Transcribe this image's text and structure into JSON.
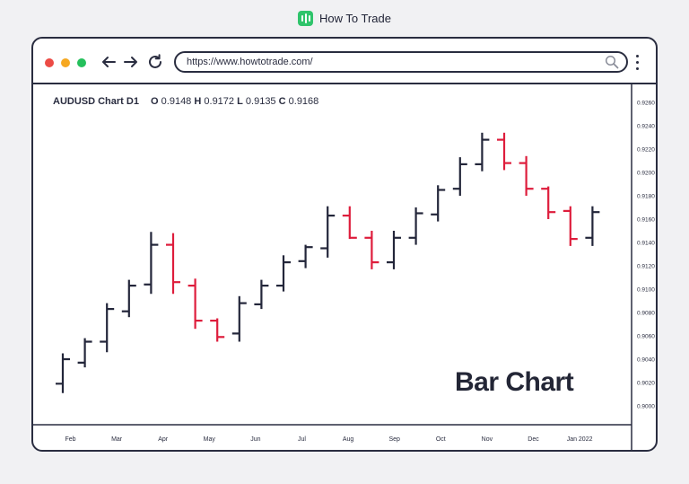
{
  "brand": {
    "name": "How To Trade",
    "logo_icon": "bar-chart-logo-icon",
    "color": "#2fc46b"
  },
  "browser": {
    "url": "https://www.howtotrade.com/",
    "traffic_lights": [
      "#ec4b45",
      "#f6a821",
      "#25c05c"
    ],
    "icons": [
      "back-arrow-icon",
      "forward-arrow-icon",
      "reload-icon",
      "search-icon",
      "kebab-menu-icon"
    ]
  },
  "chart_header": {
    "symbol": "AUDUSD Chart D1",
    "o_label": "O",
    "o_value": "0.9148",
    "h_label": "H",
    "h_value": "0.9172",
    "l_label": "L",
    "l_value": "0.9135",
    "c_label": "C",
    "c_value": "0.9168"
  },
  "watermark": "Bar Chart",
  "chart_data": {
    "type": "ohlc",
    "title": "AUDUSD Chart D1",
    "up_color": "#23263a",
    "down_color": "#de1d3c",
    "y_ticks": [
      "0.9000",
      "0.9020",
      "0.9040",
      "0.9060",
      "0.9080",
      "0.9100",
      "0.9120",
      "0.9140",
      "0.9160",
      "0.9180",
      "0.9200",
      "0.9220",
      "0.9240",
      "0.9260"
    ],
    "x_ticks": [
      "Feb",
      "Mar",
      "Apr",
      "May",
      "Jun",
      "Jul",
      "Aug",
      "Sep",
      "Oct",
      "Nov",
      "Dec",
      "Jan 2022"
    ],
    "ylim": [
      0.9,
      0.926
    ],
    "bars": [
      {
        "o": 0.9019,
        "h": 0.9045,
        "l": 0.9011,
        "c": 0.904
      },
      {
        "o": 0.9037,
        "h": 0.9058,
        "l": 0.9033,
        "c": 0.9055
      },
      {
        "o": 0.9055,
        "h": 0.9088,
        "l": 0.9046,
        "c": 0.9083
      },
      {
        "o": 0.9081,
        "h": 0.9108,
        "l": 0.9076,
        "c": 0.9103
      },
      {
        "o": 0.9104,
        "h": 0.9149,
        "l": 0.9096,
        "c": 0.9138
      },
      {
        "o": 0.9138,
        "h": 0.9148,
        "l": 0.9096,
        "c": 0.9106
      },
      {
        "o": 0.9103,
        "h": 0.9109,
        "l": 0.9066,
        "c": 0.9073
      },
      {
        "o": 0.9073,
        "h": 0.9075,
        "l": 0.9055,
        "c": 0.9059
      },
      {
        "o": 0.9062,
        "h": 0.9094,
        "l": 0.9055,
        "c": 0.9088
      },
      {
        "o": 0.9087,
        "h": 0.9108,
        "l": 0.9083,
        "c": 0.9103
      },
      {
        "o": 0.9103,
        "h": 0.9129,
        "l": 0.9098,
        "c": 0.9123
      },
      {
        "o": 0.9124,
        "h": 0.9138,
        "l": 0.9118,
        "c": 0.9136
      },
      {
        "o": 0.9135,
        "h": 0.9171,
        "l": 0.9127,
        "c": 0.9163
      },
      {
        "o": 0.9163,
        "h": 0.9171,
        "l": 0.9143,
        "c": 0.9144
      },
      {
        "o": 0.9144,
        "h": 0.915,
        "l": 0.9117,
        "c": 0.9123
      },
      {
        "o": 0.9123,
        "h": 0.915,
        "l": 0.9117,
        "c": 0.9144
      },
      {
        "o": 0.9144,
        "h": 0.917,
        "l": 0.9138,
        "c": 0.9165
      },
      {
        "o": 0.9164,
        "h": 0.9189,
        "l": 0.9158,
        "c": 0.9185
      },
      {
        "o": 0.9186,
        "h": 0.9213,
        "l": 0.918,
        "c": 0.9207
      },
      {
        "o": 0.9207,
        "h": 0.9234,
        "l": 0.9201,
        "c": 0.9228
      },
      {
        "o": 0.9228,
        "h": 0.9234,
        "l": 0.9202,
        "c": 0.9208
      },
      {
        "o": 0.9208,
        "h": 0.9214,
        "l": 0.918,
        "c": 0.9186
      },
      {
        "o": 0.9186,
        "h": 0.9188,
        "l": 0.916,
        "c": 0.9166
      },
      {
        "o": 0.9167,
        "h": 0.9171,
        "l": 0.9137,
        "c": 0.9143
      },
      {
        "o": 0.9144,
        "h": 0.9171,
        "l": 0.9137,
        "c": 0.9166
      }
    ]
  }
}
